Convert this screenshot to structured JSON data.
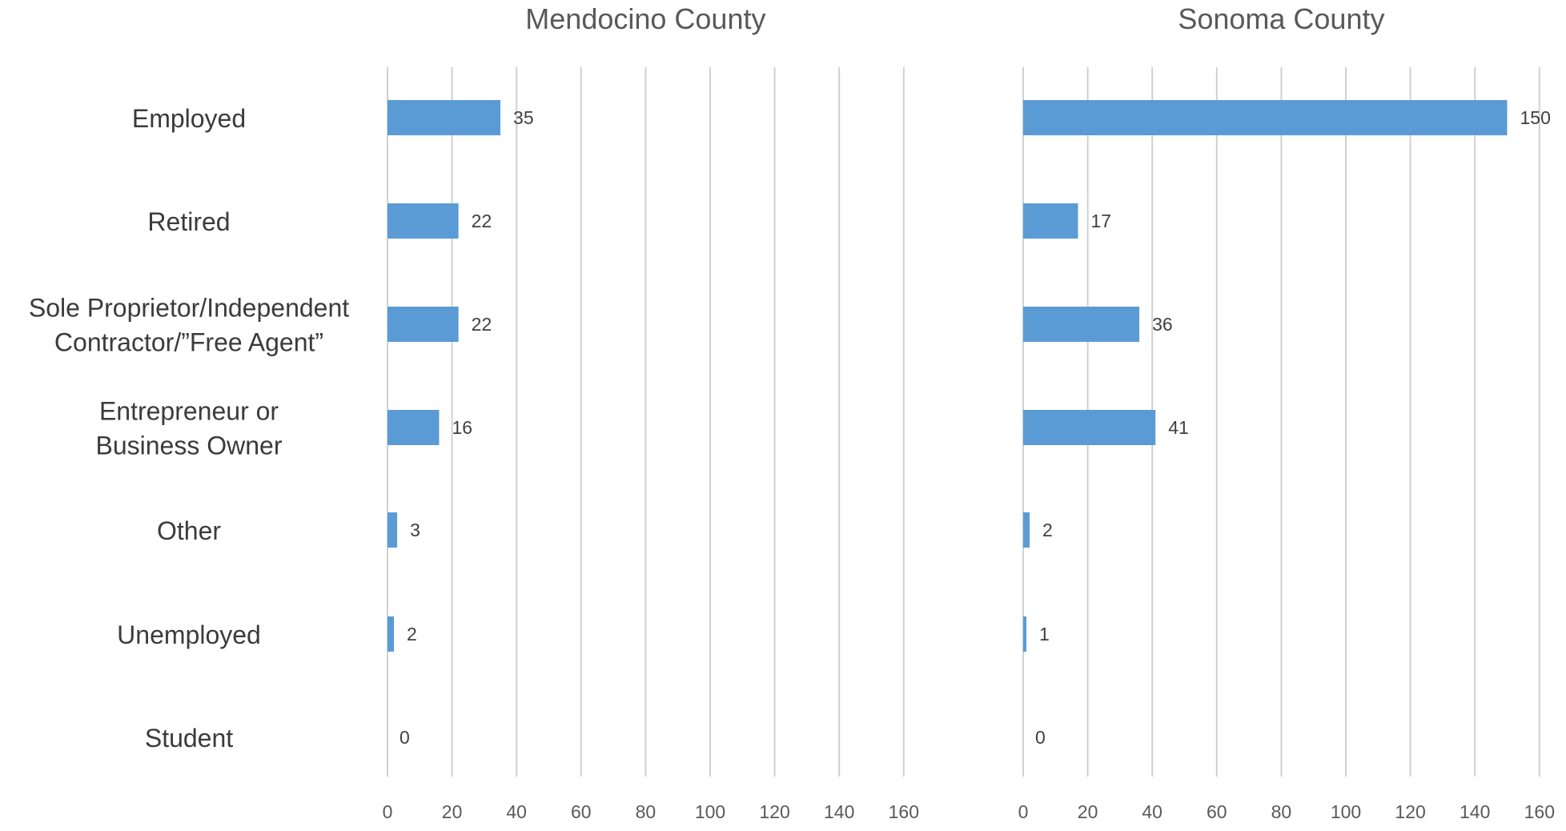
{
  "colors": {
    "bar": "#5b9bd5",
    "grid": "#d0d0d0",
    "text": "#595959"
  },
  "chart_data": [
    {
      "type": "bar",
      "orientation": "horizontal",
      "title": "Mendocino County",
      "categories": [
        "Employed",
        "Retired",
        "Sole Proprietor/Independent Contractor/”Free Agent”",
        "Entrepreneur or Business Owner",
        "Other",
        "Unemployed",
        "Student"
      ],
      "category_lines": [
        [
          "Employed"
        ],
        [
          "Retired"
        ],
        [
          "Sole Proprietor/Independent",
          "Contractor/”Free Agent”"
        ],
        [
          "Entrepreneur or",
          "Business Owner"
        ],
        [
          "Other"
        ],
        [
          "Unemployed"
        ],
        [
          "Student"
        ]
      ],
      "values": [
        35,
        22,
        22,
        16,
        3,
        2,
        0
      ],
      "xlim": [
        0,
        160
      ],
      "xticks": [
        0,
        20,
        40,
        60,
        80,
        100,
        120,
        140,
        160
      ],
      "grid": true,
      "data_labels": true
    },
    {
      "type": "bar",
      "orientation": "horizontal",
      "title": "Sonoma County",
      "categories": [
        "Employed",
        "Retired",
        "Sole Proprietor/Independent Contractor/”Free Agent”",
        "Entrepreneur or Business Owner",
        "Other",
        "Unemployed",
        "Student"
      ],
      "values": [
        150,
        17,
        36,
        41,
        2,
        1,
        0
      ],
      "xlim": [
        0,
        160
      ],
      "xticks": [
        0,
        20,
        40,
        60,
        80,
        100,
        120,
        140,
        160
      ],
      "grid": true,
      "data_labels": true
    }
  ]
}
